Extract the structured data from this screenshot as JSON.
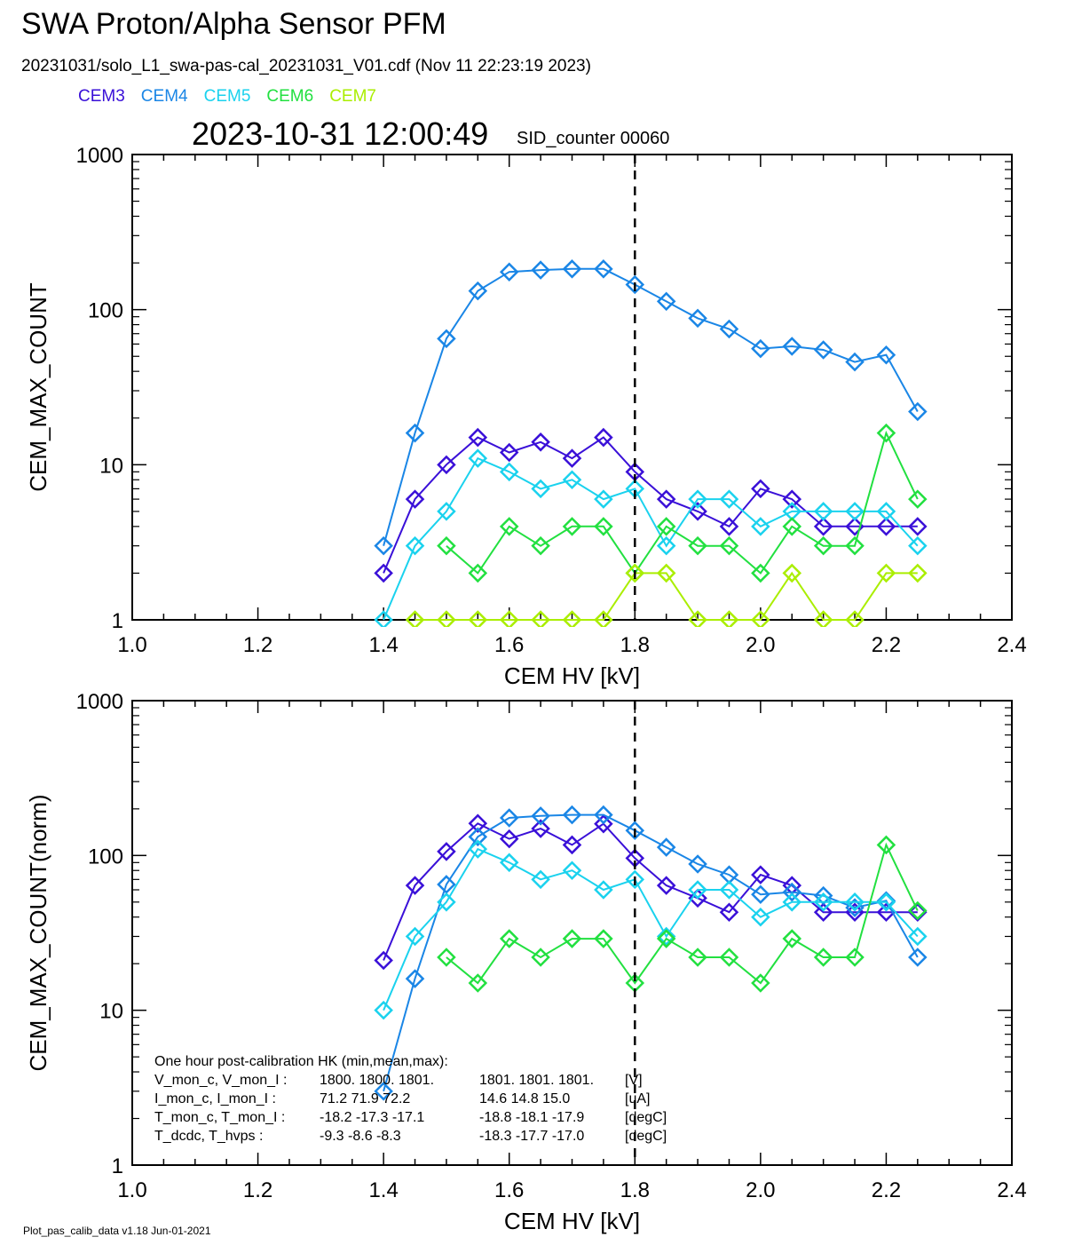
{
  "header": {
    "title": "SWA Proton/Alpha Sensor PFM",
    "subtitle": "20231031/solo_L1_swa-pas-cal_20231031_V01.cdf  (Nov 11 22:23:19 2023)",
    "timestamp": "2023-10-31 12:00:49",
    "sid_counter": "SID_counter 00060"
  },
  "legend": [
    {
      "label": "CEM3",
      "color": "#3a10d8"
    },
    {
      "label": "CEM4",
      "color": "#1a86e6"
    },
    {
      "label": "CEM5",
      "color": "#1ad2ee"
    },
    {
      "label": "CEM6",
      "color": "#22e040"
    },
    {
      "label": "CEM7",
      "color": "#aaee00"
    }
  ],
  "hk_box": {
    "heading": "One hour post-calibration HK (min,mean,max):",
    "rows": [
      {
        "name": "V_mon_c, V_mon_I :",
        "c": "1800.  1800.  1801.",
        "i": "1801.  1801.  1801.",
        "unit": "[V]"
      },
      {
        "name": "I_mon_c,  I_mon_I :",
        "c": "71.2   71.9   72.2",
        "i": "14.6   14.8   15.0",
        "unit": "[uA]"
      },
      {
        "name": "T_mon_c, T_mon_I :",
        "c": "-18.2  -17.3  -17.1",
        "i": "-18.8  -18.1  -17.9",
        "unit": "[degC]"
      },
      {
        "name": "T_dcdc,    T_hvps :",
        "c": "-9.3   -8.6   -8.3",
        "i": "-18.3  -17.7  -17.0",
        "unit": "[degC]"
      }
    ]
  },
  "footer": "Plot_pas_calib_data v1.18 Jun-01-2021",
  "chart_data": [
    {
      "type": "line",
      "ylabel": "CEM_MAX_COUNT",
      "xlabel": "CEM HV [kV]",
      "xlim": [
        1.0,
        2.4
      ],
      "ylim": [
        1,
        1000
      ],
      "yscale": "log",
      "x_ticks": [
        "1.0",
        "1.2",
        "1.4",
        "1.6",
        "1.8",
        "2.0",
        "2.2",
        "2.4"
      ],
      "y_ticks": [
        "1",
        "10",
        "100",
        "1000"
      ],
      "vline_x": 1.8,
      "x": [
        1.4,
        1.45,
        1.5,
        1.55,
        1.6,
        1.65,
        1.7,
        1.75,
        1.8,
        1.85,
        1.9,
        1.95,
        2.0,
        2.05,
        2.1,
        2.15,
        2.2,
        2.25
      ],
      "series": [
        {
          "name": "CEM3",
          "color": "#3a10d8",
          "values": [
            2,
            6,
            10,
            15,
            12,
            14,
            11,
            15,
            9,
            6,
            5,
            4,
            7,
            6,
            4,
            4,
            4,
            4
          ]
        },
        {
          "name": "CEM4",
          "color": "#1a86e6",
          "values": [
            3,
            16,
            65,
            132,
            175,
            180,
            183,
            183,
            145,
            113,
            88,
            75,
            56,
            58,
            55,
            46,
            51,
            22
          ]
        },
        {
          "name": "CEM5",
          "color": "#1ad2ee",
          "values": [
            1,
            3,
            5,
            11,
            9,
            7,
            8,
            6,
            7,
            3,
            6,
            6,
            4,
            5,
            5,
            5,
            5,
            3
          ]
        },
        {
          "name": "CEM6",
          "color": "#22e040",
          "values": [
            null,
            null,
            3,
            2,
            4,
            3,
            4,
            4,
            2,
            4,
            3,
            3,
            2,
            4,
            3,
            3,
            16,
            6
          ]
        },
        {
          "name": "CEM7",
          "color": "#aaee00",
          "values": [
            null,
            1,
            1,
            1,
            1,
            1,
            1,
            1,
            2,
            2,
            1,
            1,
            1,
            2,
            1,
            1,
            2,
            2
          ]
        }
      ]
    },
    {
      "type": "line",
      "ylabel": "CEM_MAX_COUNT(norm)",
      "xlabel": "CEM HV [kV]",
      "xlim": [
        1.0,
        2.4
      ],
      "ylim": [
        1,
        1000
      ],
      "yscale": "log",
      "x_ticks": [
        "1.0",
        "1.2",
        "1.4",
        "1.6",
        "1.8",
        "2.0",
        "2.2",
        "2.4"
      ],
      "y_ticks": [
        "1",
        "10",
        "100",
        "1000"
      ],
      "vline_x": 1.8,
      "x": [
        1.4,
        1.45,
        1.5,
        1.55,
        1.6,
        1.65,
        1.7,
        1.75,
        1.8,
        1.85,
        1.9,
        1.95,
        2.0,
        2.05,
        2.1,
        2.15,
        2.2,
        2.25
      ],
      "series": [
        {
          "name": "CEM3",
          "color": "#3a10d8",
          "values": [
            21,
            64,
            106,
            161,
            128,
            149,
            117,
            160,
            96,
            64,
            53,
            43,
            75,
            64,
            43,
            43,
            43,
            43
          ]
        },
        {
          "name": "CEM4",
          "color": "#1a86e6",
          "values": [
            3,
            16,
            65,
            132,
            175,
            180,
            183,
            183,
            145,
            113,
            88,
            75,
            56,
            58,
            55,
            46,
            51,
            22
          ]
        },
        {
          "name": "CEM5",
          "color": "#1ad2ee",
          "values": [
            10,
            30,
            50,
            110,
            90,
            70,
            80,
            60,
            70,
            30,
            60,
            60,
            40,
            50,
            50,
            50,
            50,
            30
          ]
        },
        {
          "name": "CEM6",
          "color": "#22e040",
          "values": [
            null,
            null,
            22,
            15,
            29,
            22,
            29,
            29,
            15,
            29,
            22,
            22,
            15,
            29,
            22,
            22,
            117,
            44
          ]
        }
      ]
    }
  ]
}
